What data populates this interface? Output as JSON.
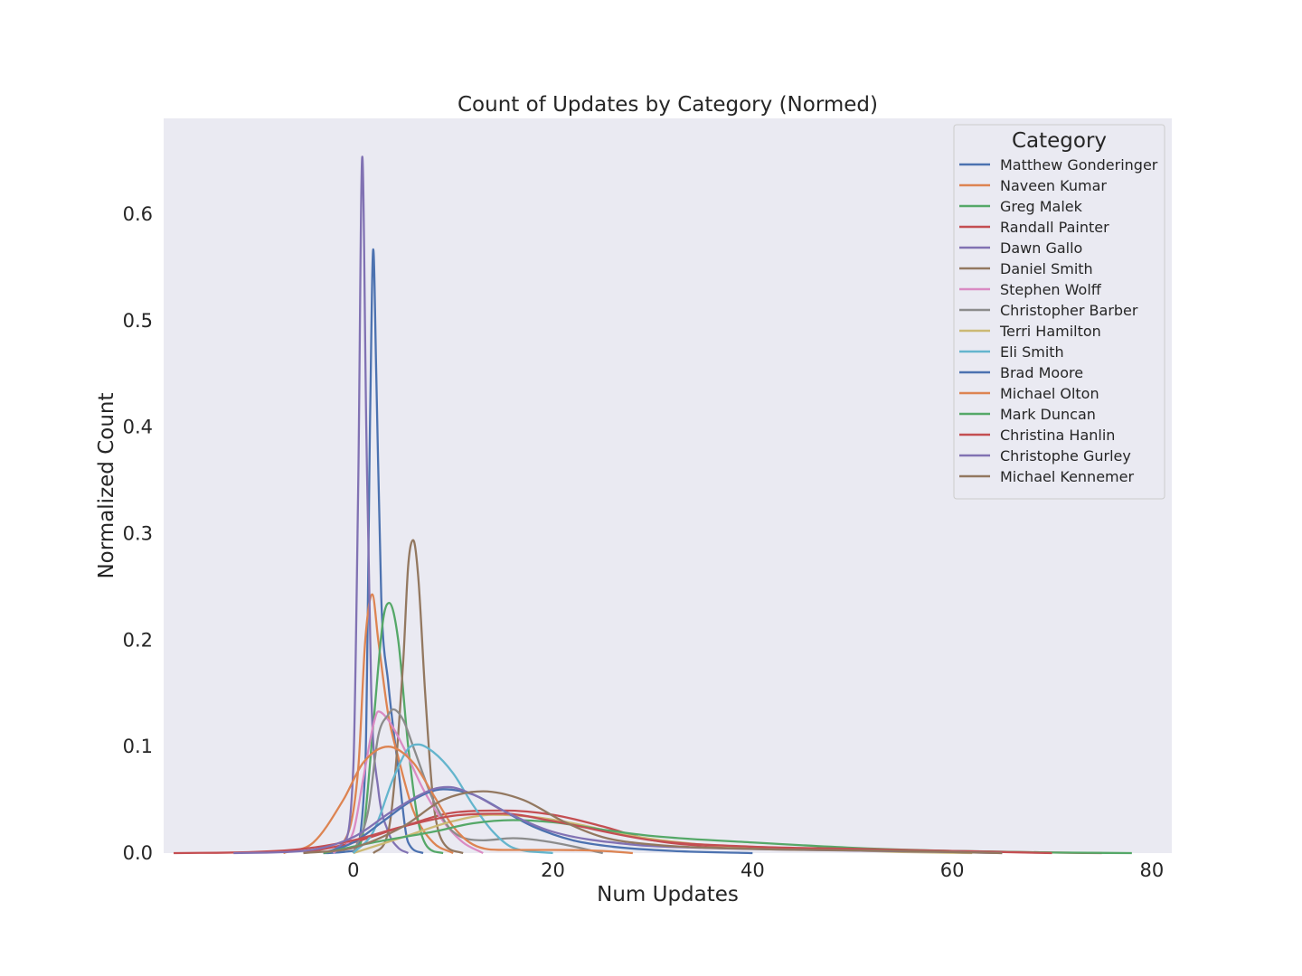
{
  "chart_data": {
    "type": "line",
    "title": "Count of Updates by Category (Normed)",
    "xlabel": "Num Updates",
    "ylabel": "Normalized Count",
    "xlim": [
      -19,
      82
    ],
    "ylim": [
      0,
      0.69
    ],
    "xticks": [
      0,
      20,
      40,
      60,
      80
    ],
    "yticks": [
      0.0,
      0.1,
      0.2,
      0.3,
      0.4,
      0.5,
      0.6
    ],
    "grid": false,
    "legend": {
      "title": "Category",
      "placement": "top-right"
    },
    "series": [
      {
        "name": "Matthew Gonderinger",
        "color": "#4c72b0",
        "x": [
          -3,
          0,
          1.2,
          1.7,
          2.0,
          2.3,
          2.8,
          3.5,
          4.5,
          5.5,
          7
        ],
        "y": [
          0,
          0.002,
          0.08,
          0.42,
          0.567,
          0.45,
          0.24,
          0.16,
          0.08,
          0.01,
          0
        ]
      },
      {
        "name": "Naveen Kumar",
        "color": "#dd8452",
        "x": [
          -3,
          -1,
          0.5,
          1.2,
          1.9,
          2.5,
          3.5,
          4.5,
          6,
          8,
          10
        ],
        "y": [
          0,
          0.01,
          0.08,
          0.2,
          0.243,
          0.2,
          0.13,
          0.09,
          0.04,
          0.01,
          0
        ]
      },
      {
        "name": "Greg Malek",
        "color": "#55a868",
        "x": [
          0,
          1,
          2,
          3,
          3.6,
          4.5,
          5.5,
          6.5,
          7.5,
          9
        ],
        "y": [
          0,
          0.02,
          0.12,
          0.22,
          0.235,
          0.2,
          0.1,
          0.03,
          0.005,
          0
        ]
      },
      {
        "name": "Randall Painter",
        "color": "#c44e52",
        "x": [
          -5,
          0,
          5,
          10,
          15,
          20,
          25,
          30,
          40,
          50,
          60,
          70,
          75
        ],
        "y": [
          0,
          0.01,
          0.025,
          0.038,
          0.04,
          0.036,
          0.025,
          0.012,
          0.005,
          0.003,
          0.002,
          0.0005,
          0
        ]
      },
      {
        "name": "Dawn Gallo",
        "color": "#8172b3",
        "x": [
          -3,
          -1,
          0,
          0.5,
          0.9,
          1.3,
          1.8,
          2.5,
          3.5,
          4.5,
          5.5
        ],
        "y": [
          0,
          0.01,
          0.08,
          0.35,
          0.654,
          0.4,
          0.15,
          0.06,
          0.02,
          0.005,
          0
        ]
      },
      {
        "name": "Daniel Smith",
        "color": "#937860",
        "x": [
          2,
          3.5,
          5,
          5.5,
          6,
          6.5,
          7.2,
          8,
          9,
          11
        ],
        "y": [
          0,
          0.02,
          0.18,
          0.27,
          0.294,
          0.26,
          0.15,
          0.05,
          0.01,
          0
        ]
      },
      {
        "name": "Stephen Wolff",
        "color": "#da8bc3",
        "x": [
          -2,
          0,
          1,
          2,
          2.5,
          3.5,
          5,
          7,
          9,
          11,
          13
        ],
        "y": [
          0,
          0.02,
          0.07,
          0.12,
          0.133,
          0.125,
          0.1,
          0.06,
          0.03,
          0.01,
          0
        ]
      },
      {
        "name": "Christopher Barber",
        "color": "#8c8c8c",
        "x": [
          0,
          1.5,
          2.5,
          3.5,
          4,
          5,
          6,
          8,
          10,
          13,
          16,
          20,
          25
        ],
        "y": [
          0,
          0.04,
          0.11,
          0.13,
          0.135,
          0.125,
          0.1,
          0.05,
          0.02,
          0.012,
          0.014,
          0.01,
          0
        ]
      },
      {
        "name": "Terri Hamilton",
        "color": "#ccb974",
        "x": [
          0,
          5,
          10,
          14,
          18,
          22,
          28,
          35,
          45,
          55,
          62
        ],
        "y": [
          0,
          0.015,
          0.03,
          0.036,
          0.034,
          0.028,
          0.016,
          0.008,
          0.004,
          0.001,
          0
        ]
      },
      {
        "name": "Eli Smith",
        "color": "#64b5cd",
        "x": [
          0,
          2,
          4,
          5.5,
          6.5,
          8,
          10,
          12,
          14,
          16,
          20
        ],
        "y": [
          0,
          0.02,
          0.07,
          0.098,
          0.102,
          0.095,
          0.075,
          0.045,
          0.02,
          0.005,
          0
        ]
      },
      {
        "name": "Brad Moore",
        "color": "#4c72b0",
        "x": [
          -3,
          0,
          3,
          6,
          9,
          12,
          15,
          18,
          22,
          26,
          32,
          40
        ],
        "y": [
          0,
          0.01,
          0.03,
          0.05,
          0.06,
          0.055,
          0.04,
          0.025,
          0.012,
          0.006,
          0.002,
          0
        ]
      },
      {
        "name": "Michael Olton",
        "color": "#dd8452",
        "x": [
          -7,
          -4,
          -1,
          1,
          3.5,
          6,
          8,
          10,
          12,
          15,
          20,
          25,
          28
        ],
        "y": [
          0,
          0.01,
          0.05,
          0.085,
          0.1,
          0.085,
          0.055,
          0.025,
          0.008,
          0.003,
          0.003,
          0.002,
          0
        ]
      },
      {
        "name": "Mark Duncan",
        "color": "#55a868",
        "x": [
          -3,
          2,
          8,
          12,
          16,
          20,
          25,
          30,
          40,
          50,
          60,
          70,
          78
        ],
        "y": [
          0,
          0.01,
          0.02,
          0.028,
          0.031,
          0.029,
          0.022,
          0.016,
          0.01,
          0.005,
          0.002,
          0.0005,
          0
        ]
      },
      {
        "name": "Christina Hanlin",
        "color": "#c44e52",
        "x": [
          -18,
          -10,
          -5,
          0,
          5,
          10,
          15,
          20,
          30,
          40,
          50,
          60,
          70
        ],
        "y": [
          0,
          0.001,
          0.004,
          0.012,
          0.025,
          0.035,
          0.037,
          0.03,
          0.012,
          0.006,
          0.004,
          0.002,
          0
        ]
      },
      {
        "name": "Christophe Gurley",
        "color": "#8172b3",
        "x": [
          -12,
          -5,
          0,
          4,
          8,
          9.5,
          12,
          15,
          20,
          28,
          35,
          45,
          60,
          65
        ],
        "y": [
          0,
          0.002,
          0.015,
          0.04,
          0.06,
          0.062,
          0.055,
          0.04,
          0.02,
          0.008,
          0.005,
          0.003,
          0.001,
          0
        ]
      },
      {
        "name": "Michael Kennemer",
        "color": "#937860",
        "x": [
          -5,
          0,
          5,
          9,
          13,
          17,
          21,
          25,
          30,
          40,
          55,
          65
        ],
        "y": [
          0,
          0.005,
          0.025,
          0.05,
          0.058,
          0.05,
          0.03,
          0.015,
          0.008,
          0.004,
          0.002,
          0
        ]
      }
    ]
  }
}
